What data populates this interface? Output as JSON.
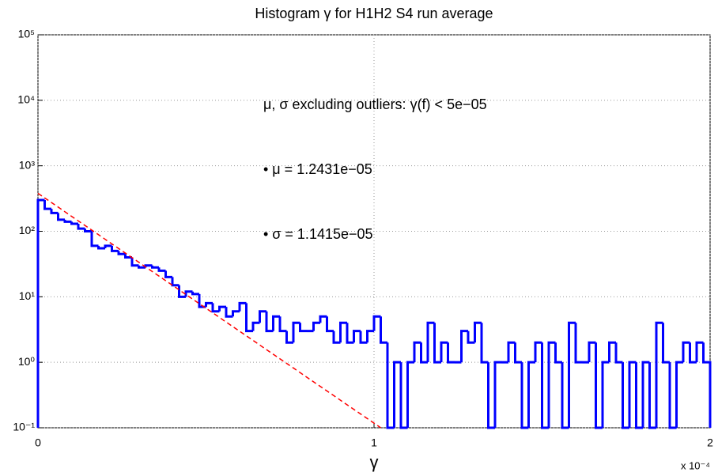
{
  "chart_data": {
    "type": "histogram",
    "title": "Histogram γ for H1H2 S4 run average",
    "xlabel": "γ",
    "x_multiplier": "x 10⁻⁴",
    "annotations": [
      "μ, σ excluding outliers: γ(f) < 5e−05",
      "• μ = 1.2431e−05",
      "• σ = 1.1415e−05"
    ],
    "xlim": [
      0,
      2
    ],
    "xticks": [
      0,
      1,
      2
    ],
    "ylim": [
      0.1,
      100000
    ],
    "yticks": [
      {
        "value": 0.1,
        "label": "10⁻¹"
      },
      {
        "value": 1,
        "label": "10⁰"
      },
      {
        "value": 10,
        "label": "10¹"
      },
      {
        "value": 100,
        "label": "10²"
      },
      {
        "value": 1000,
        "label": "10³"
      },
      {
        "value": 10000,
        "label": "10⁴"
      },
      {
        "value": 100000,
        "label": "10⁵"
      }
    ],
    "log_y": true,
    "grid": true,
    "color": "#0000ff",
    "bins": [
      0,
      0.02,
      0.04,
      0.06,
      0.08,
      0.1,
      0.12,
      0.14,
      0.16,
      0.18,
      0.2,
      0.22,
      0.24,
      0.26,
      0.28,
      0.3,
      0.32,
      0.34,
      0.36,
      0.38,
      0.4,
      0.42,
      0.44,
      0.46,
      0.48,
      0.5,
      0.52,
      0.54,
      0.56,
      0.58,
      0.6,
      0.62,
      0.64,
      0.66,
      0.68,
      0.7,
      0.72,
      0.74,
      0.76,
      0.78,
      0.8,
      0.82,
      0.84,
      0.86,
      0.88,
      0.9,
      0.92,
      0.94,
      0.96,
      0.98,
      1,
      1.02,
      1.04,
      1.06,
      1.08,
      1.1,
      1.12,
      1.14,
      1.16,
      1.18,
      1.2,
      1.22,
      1.24,
      1.26,
      1.28,
      1.3,
      1.32,
      1.34,
      1.36,
      1.38,
      1.4,
      1.42,
      1.44,
      1.46,
      1.48,
      1.5,
      1.52,
      1.54,
      1.56,
      1.58,
      1.6,
      1.62,
      1.64,
      1.66,
      1.68,
      1.7,
      1.72,
      1.74,
      1.76,
      1.78,
      1.8,
      1.82,
      1.84,
      1.86,
      1.88,
      1.9,
      1.92,
      1.94,
      1.96,
      1.98,
      2
    ],
    "counts": [
      300,
      220,
      190,
      150,
      140,
      130,
      110,
      100,
      60,
      55,
      60,
      50,
      45,
      40,
      30,
      28,
      30,
      28,
      25,
      20,
      15,
      10,
      12,
      11,
      7,
      8,
      6,
      7,
      5,
      6,
      8,
      3,
      4,
      6,
      3,
      5,
      3,
      2,
      4,
      3,
      3,
      4,
      5,
      3,
      2,
      4,
      2,
      3,
      2,
      3,
      5,
      2,
      0,
      1,
      0,
      1,
      2,
      1,
      4,
      1,
      2,
      1,
      1,
      3,
      2,
      4,
      1,
      0,
      1,
      1,
      2,
      1,
      0,
      1,
      2,
      0,
      2,
      1,
      0,
      4,
      1,
      1,
      2,
      0,
      1,
      2,
      1,
      0,
      1,
      0,
      1,
      0,
      4,
      1,
      0,
      1,
      2,
      1,
      2,
      1
    ],
    "fit": {
      "color": "#ff0000",
      "x": [
        0,
        1.02
      ],
      "values": [
        380,
        0.1
      ]
    }
  }
}
